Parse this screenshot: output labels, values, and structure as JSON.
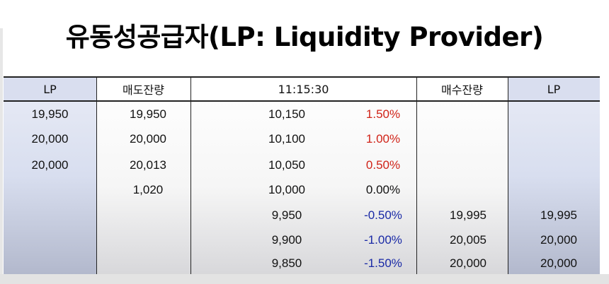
{
  "title": "유동성공급자(LP: Liquidity Provider)",
  "header": {
    "lp_left": "LP",
    "sell_remaining": "매도잔량",
    "time": "11:15:30",
    "buy_remaining": "매수잔량",
    "lp_right": "LP"
  },
  "colors": {
    "up": "#d02318",
    "down": "#1a2aa6",
    "lp_column": "#d8deef"
  },
  "rows": [
    {
      "lp_sell": "19,950",
      "sell": "19,950",
      "price": "10,150",
      "pct": "1.50%",
      "dir": "up",
      "buy": "",
      "lp_buy": ""
    },
    {
      "lp_sell": "20,000",
      "sell": "20,000",
      "price": "10,100",
      "pct": "1.00%",
      "dir": "up",
      "buy": "",
      "lp_buy": ""
    },
    {
      "lp_sell": "20,000",
      "sell": "20,013",
      "price": "10,050",
      "pct": "0.50%",
      "dir": "up",
      "buy": "",
      "lp_buy": ""
    },
    {
      "lp_sell": "",
      "sell": "1,020",
      "price": "10,000",
      "pct": "0.00%",
      "dir": "flat",
      "buy": "",
      "lp_buy": ""
    },
    {
      "lp_sell": "",
      "sell": "",
      "price": "9,950",
      "pct": "-0.50%",
      "dir": "down",
      "buy": "19,995",
      "lp_buy": "19,995"
    },
    {
      "lp_sell": "",
      "sell": "",
      "price": "9,900",
      "pct": "-1.00%",
      "dir": "down",
      "buy": "20,005",
      "lp_buy": "20,000"
    },
    {
      "lp_sell": "",
      "sell": "",
      "price": "9,850",
      "pct": "-1.50%",
      "dir": "down",
      "buy": "20,000",
      "lp_buy": "20,000"
    }
  ]
}
